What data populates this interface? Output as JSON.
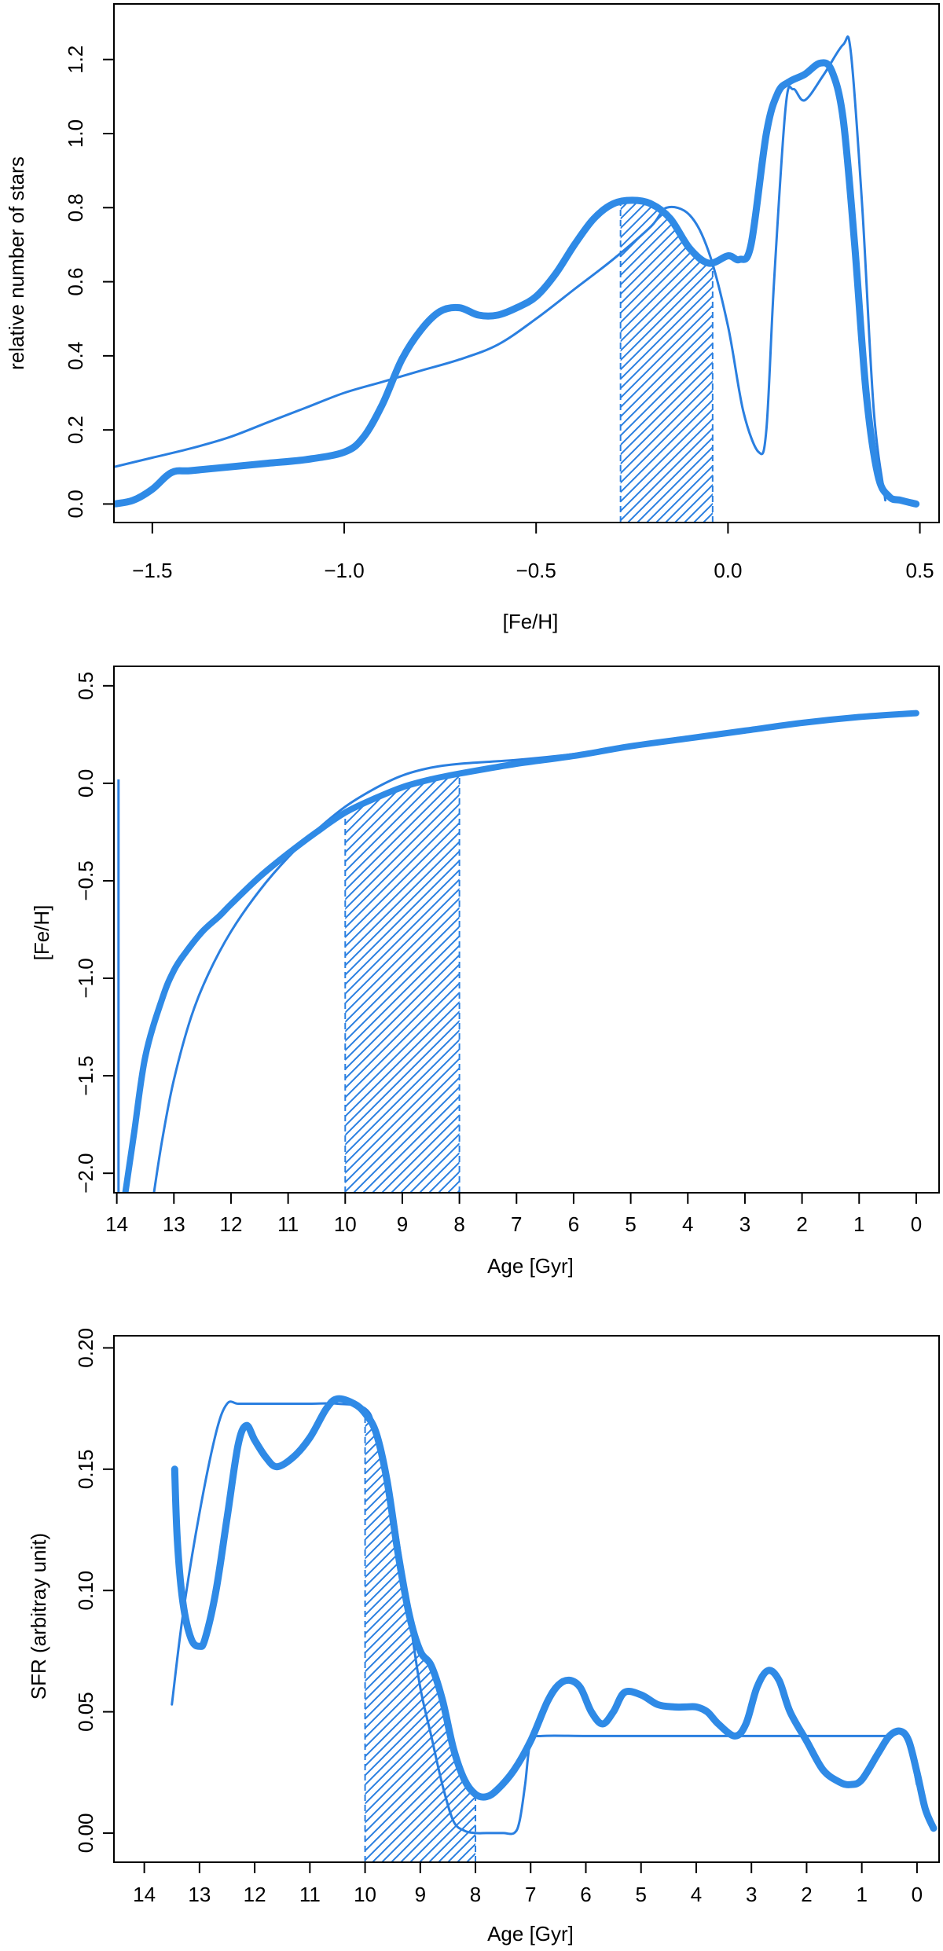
{
  "colors": {
    "series": "#2a7fe0",
    "thick": "#2f8ae6",
    "frame": "#000000"
  },
  "chart_data": [
    {
      "id": "mdf",
      "type": "line",
      "title": "",
      "xlabel": "[Fe/H]",
      "ylabel": "relative number of stars",
      "xlim": [
        -1.6,
        0.55
      ],
      "ylim": [
        -0.05,
        1.35
      ],
      "xticks": [
        -1.5,
        -1.0,
        -0.5,
        0.0,
        0.5
      ],
      "xtick_labels": [
        "−1.5",
        "−1.0",
        "−0.5",
        "0.0",
        "0.5"
      ],
      "yticks": [
        0.0,
        0.2,
        0.4,
        0.6,
        0.8,
        1.0,
        1.2
      ],
      "ytick_labels": [
        "0.0",
        "0.2",
        "0.4",
        "0.6",
        "0.8",
        "1.0",
        "1.2"
      ],
      "shade": {
        "x0": -0.28,
        "x1": -0.04,
        "top": "curve:thick"
      },
      "series": [
        {
          "name": "thick",
          "width": 9,
          "x": [
            -1.6,
            -1.55,
            -1.5,
            -1.45,
            -1.4,
            -1.3,
            -1.2,
            -1.1,
            -1.0,
            -0.95,
            -0.9,
            -0.85,
            -0.8,
            -0.75,
            -0.7,
            -0.65,
            -0.6,
            -0.55,
            -0.5,
            -0.45,
            -0.4,
            -0.35,
            -0.3,
            -0.25,
            -0.2,
            -0.15,
            -0.1,
            -0.05,
            0.0,
            0.03,
            0.06,
            0.1,
            0.13,
            0.16,
            0.2,
            0.24,
            0.27,
            0.3,
            0.33,
            0.36,
            0.39,
            0.42,
            0.45,
            0.49
          ],
          "y": [
            0.0,
            0.01,
            0.04,
            0.085,
            0.09,
            0.1,
            0.11,
            0.12,
            0.14,
            0.18,
            0.27,
            0.39,
            0.47,
            0.52,
            0.53,
            0.51,
            0.51,
            0.53,
            0.56,
            0.62,
            0.7,
            0.77,
            0.81,
            0.82,
            0.81,
            0.77,
            0.69,
            0.65,
            0.67,
            0.66,
            0.7,
            1.0,
            1.11,
            1.14,
            1.16,
            1.19,
            1.17,
            1.04,
            0.7,
            0.3,
            0.08,
            0.02,
            0.01,
            0.0
          ]
        },
        {
          "name": "thin",
          "width": 3,
          "x": [
            -1.6,
            -1.5,
            -1.4,
            -1.3,
            -1.2,
            -1.1,
            -1.0,
            -0.9,
            -0.8,
            -0.7,
            -0.6,
            -0.5,
            -0.4,
            -0.3,
            -0.2,
            -0.16,
            -0.1,
            -0.05,
            0.0,
            0.04,
            0.08,
            0.1,
            0.12,
            0.15,
            0.17,
            0.2,
            0.25,
            0.3,
            0.32,
            0.35,
            0.38,
            0.41
          ],
          "y": [
            0.1,
            0.125,
            0.15,
            0.18,
            0.22,
            0.26,
            0.3,
            0.33,
            0.36,
            0.39,
            0.43,
            0.5,
            0.58,
            0.66,
            0.75,
            0.8,
            0.78,
            0.68,
            0.48,
            0.25,
            0.14,
            0.2,
            0.6,
            1.07,
            1.12,
            1.09,
            1.16,
            1.24,
            1.22,
            0.8,
            0.25,
            0.01
          ]
        }
      ]
    },
    {
      "id": "amr",
      "type": "line",
      "title": "",
      "xlabel": "Age [Gyr]",
      "ylabel": "[Fe/H]",
      "xlim": [
        14.05,
        -0.4
      ],
      "ylim": [
        -2.1,
        0.6
      ],
      "xticks": [
        14,
        13,
        12,
        11,
        10,
        9,
        8,
        7,
        6,
        5,
        4,
        3,
        2,
        1,
        0
      ],
      "xtick_labels": [
        "14",
        "13",
        "12",
        "11",
        "10",
        "9",
        "8",
        "7",
        "6",
        "5",
        "4",
        "3",
        "2",
        "1",
        "0"
      ],
      "yticks": [
        -2.0,
        -1.5,
        -1.0,
        -0.5,
        0.0,
        0.5
      ],
      "ytick_labels": [
        "−2.0",
        "−1.5",
        "−1.0",
        "−0.5",
        "0.0",
        "0.5"
      ],
      "shade": {
        "x0": 10.0,
        "x1": 8.0,
        "top": "curve:thick"
      },
      "vline": {
        "x": 13.97,
        "y0": -2.1,
        "y1": 0.02
      },
      "series": [
        {
          "name": "thick",
          "width": 8,
          "x": [
            13.85,
            13.7,
            13.5,
            13.2,
            13.0,
            12.8,
            12.5,
            12.2,
            12.0,
            11.5,
            11.0,
            10.5,
            10.0,
            9.5,
            9.0,
            8.5,
            8.0,
            7.0,
            6.0,
            5.0,
            4.0,
            3.0,
            2.0,
            1.0,
            0.0
          ],
          "y": [
            -2.1,
            -1.8,
            -1.4,
            -1.1,
            -0.96,
            -0.87,
            -0.76,
            -0.68,
            -0.62,
            -0.48,
            -0.36,
            -0.25,
            -0.15,
            -0.08,
            -0.02,
            0.02,
            0.05,
            0.1,
            0.14,
            0.19,
            0.23,
            0.27,
            0.31,
            0.34,
            0.36
          ]
        },
        {
          "name": "thin",
          "width": 3,
          "x": [
            13.35,
            13.2,
            13.0,
            12.7,
            12.4,
            12.0,
            11.5,
            11.0,
            10.5,
            10.0,
            9.5,
            9.0,
            8.5,
            8.0,
            7.0,
            6.0,
            5.0,
            4.0,
            3.0,
            2.0,
            1.0,
            0.0
          ],
          "y": [
            -2.1,
            -1.82,
            -1.52,
            -1.2,
            -0.98,
            -0.76,
            -0.55,
            -0.38,
            -0.24,
            -0.12,
            -0.03,
            0.04,
            0.08,
            0.1,
            0.12,
            0.15,
            0.19,
            0.23,
            0.27,
            0.31,
            0.34,
            0.36
          ]
        }
      ]
    },
    {
      "id": "sfr",
      "type": "line",
      "title": "",
      "xlabel": "Age [Gyr]",
      "ylabel": "SFR (arbitray unit)",
      "xlim": [
        14.55,
        -0.4
      ],
      "ylim": [
        -0.012,
        0.205
      ],
      "xticks": [
        14,
        13,
        12,
        11,
        10,
        9,
        8,
        7,
        6,
        5,
        4,
        3,
        2,
        1,
        0
      ],
      "xtick_labels": [
        "14",
        "13",
        "12",
        "11",
        "10",
        "9",
        "8",
        "7",
        "6",
        "5",
        "4",
        "3",
        "2",
        "1",
        "0"
      ],
      "yticks": [
        0.0,
        0.05,
        0.1,
        0.15,
        0.2
      ],
      "ytick_labels": [
        "0.00",
        "0.05",
        "0.10",
        "0.15",
        "0.20"
      ],
      "shade": {
        "x0": 10.0,
        "x1": 8.0,
        "top": "curve:thick"
      },
      "series": [
        {
          "name": "thick",
          "width": 9,
          "x": [
            13.45,
            13.4,
            13.3,
            13.15,
            13.0,
            12.9,
            12.7,
            12.5,
            12.3,
            12.15,
            12.0,
            11.8,
            11.6,
            11.3,
            11.0,
            10.7,
            10.5,
            10.2,
            10.0,
            9.8,
            9.6,
            9.4,
            9.2,
            9.0,
            8.8,
            8.6,
            8.4,
            8.2,
            8.0,
            7.8,
            7.6,
            7.3,
            7.0,
            6.7,
            6.5,
            6.3,
            6.1,
            5.9,
            5.7,
            5.5,
            5.3,
            5.0,
            4.7,
            4.4,
            4.2,
            4.0,
            3.8,
            3.6,
            3.3,
            3.1,
            2.9,
            2.7,
            2.5,
            2.3,
            2.0,
            1.7,
            1.4,
            1.2,
            1.0,
            0.7,
            0.5,
            0.3,
            0.15,
            0.0,
            -0.15,
            -0.3
          ],
          "y": [
            0.15,
            0.12,
            0.095,
            0.08,
            0.077,
            0.08,
            0.1,
            0.13,
            0.16,
            0.168,
            0.162,
            0.155,
            0.151,
            0.155,
            0.163,
            0.175,
            0.179,
            0.177,
            0.173,
            0.165,
            0.145,
            0.115,
            0.09,
            0.075,
            0.069,
            0.055,
            0.035,
            0.022,
            0.016,
            0.015,
            0.018,
            0.026,
            0.038,
            0.054,
            0.061,
            0.063,
            0.06,
            0.05,
            0.045,
            0.05,
            0.058,
            0.057,
            0.053,
            0.052,
            0.052,
            0.052,
            0.05,
            0.045,
            0.04,
            0.045,
            0.06,
            0.067,
            0.063,
            0.05,
            0.038,
            0.026,
            0.021,
            0.02,
            0.022,
            0.033,
            0.04,
            0.042,
            0.038,
            0.025,
            0.01,
            0.002
          ]
        },
        {
          "name": "thin",
          "width": 3,
          "x": [
            13.5,
            13.3,
            13.0,
            12.7,
            12.5,
            12.3,
            12.0,
            11.5,
            11.0,
            10.5,
            10.0,
            9.8,
            9.5,
            9.2,
            9.0,
            8.8,
            8.6,
            8.4,
            8.2,
            8.0,
            7.8,
            7.5,
            7.3,
            7.2,
            7.1,
            7.0,
            6.8,
            6.0,
            5.0,
            4.0,
            3.0,
            2.0,
            1.0,
            0.5,
            0.2,
            0.0
          ],
          "y": [
            0.053,
            0.09,
            0.132,
            0.165,
            0.177,
            0.177,
            0.177,
            0.177,
            0.177,
            0.177,
            0.175,
            0.165,
            0.135,
            0.09,
            0.06,
            0.04,
            0.02,
            0.005,
            0.001,
            0.0,
            0.0,
            0.0,
            0.0,
            0.005,
            0.02,
            0.038,
            0.04,
            0.04,
            0.04,
            0.04,
            0.04,
            0.04,
            0.04,
            0.04,
            0.04,
            0.02
          ]
        }
      ]
    }
  ]
}
